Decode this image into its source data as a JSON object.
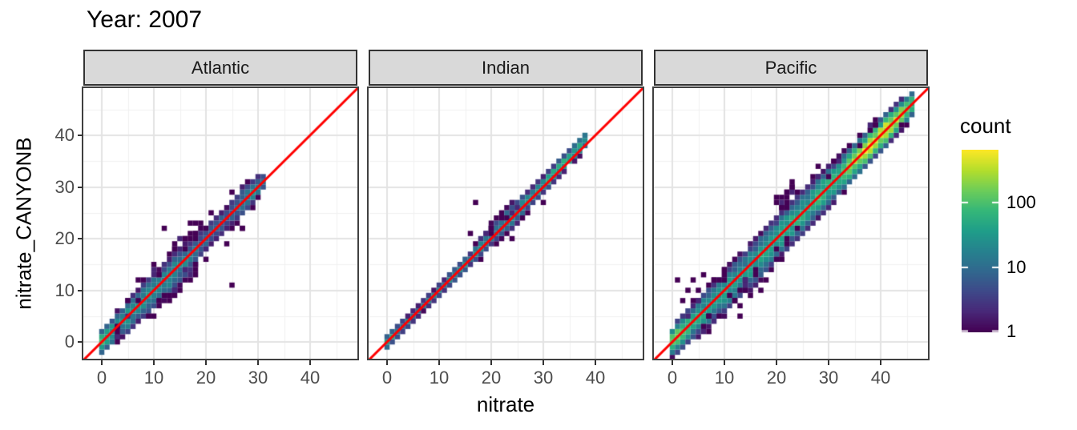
{
  "title": "Year: 2007",
  "axes": {
    "x_label": "nitrate",
    "y_label": "nitrate_CANYONB",
    "x_tick_labels": [
      "0",
      "10",
      "20",
      "30",
      "40"
    ],
    "x_tick_values": [
      0,
      10,
      20,
      30,
      40
    ],
    "y_tick_labels": [
      "0",
      "10",
      "20",
      "30",
      "40"
    ],
    "y_tick_values": [
      0,
      10,
      20,
      30,
      40
    ],
    "minor_tick_values": [
      5,
      15,
      25,
      35,
      45
    ]
  },
  "legend": {
    "title": "count",
    "tick_labels": [
      "100",
      "10",
      "1"
    ],
    "tick_values": [
      100,
      10,
      1
    ],
    "max_count": 650
  },
  "colors": {
    "background": "#ffffff",
    "strip_bg": "#d9d9d9",
    "strip_border": "#333333",
    "panel_border": "#404040",
    "grid_major": "#e3e3e3",
    "grid_minor": "#f1f1f1",
    "tick_label": "#4d4d4d",
    "tick_mark": "#333333",
    "reference_line": "#ff0000",
    "viridis": [
      "#440154",
      "#482878",
      "#3e4989",
      "#31688e",
      "#26828e",
      "#1f9e89",
      "#35b779",
      "#6dcd59",
      "#b4de2c",
      "#fde725"
    ]
  },
  "chart_data": {
    "type": "heatmap",
    "subtype": "bin2d-scatter",
    "title": "Year: 2007",
    "xlabel": "nitrate",
    "ylabel": "nitrate_CANYONB",
    "xlim": [
      -3.5,
      49.2
    ],
    "ylim": [
      -3.3,
      49.2
    ],
    "grid": true,
    "legend_position": "right",
    "fill_scale": {
      "name": "count",
      "transform": "log10",
      "limits": [
        1,
        650
      ],
      "palette": "viridis",
      "legend_ticks": [
        1,
        10,
        100
      ]
    },
    "reference_line": {
      "type": "abline",
      "slope": 1,
      "intercept": 0,
      "color": "#ff0000",
      "width": 3
    },
    "bin_width": 1,
    "facets": [
      {
        "name": "Atlantic",
        "seed": 11,
        "diagonal_extent": [
          0,
          31
        ],
        "count_profile": [
          [
            0,
            95
          ],
          [
            1,
            55
          ],
          [
            3,
            35
          ],
          [
            6,
            28
          ],
          [
            9,
            25
          ],
          [
            12,
            22
          ],
          [
            15,
            16
          ],
          [
            18,
            12
          ],
          [
            21,
            9
          ],
          [
            24,
            7
          ],
          [
            27,
            10
          ],
          [
            29,
            22
          ],
          [
            30,
            28
          ],
          [
            31,
            12
          ]
        ],
        "spread_profile": [
          [
            0,
            0.9
          ],
          [
            5,
            1.3
          ],
          [
            10,
            1.5
          ],
          [
            15,
            1.6
          ],
          [
            20,
            1.3
          ],
          [
            24,
            1.2
          ],
          [
            27,
            1.4
          ],
          [
            29,
            1.0
          ],
          [
            31,
            0.8
          ]
        ],
        "bias_profile": [
          [
            0,
            0
          ],
          [
            10,
            -0.2
          ],
          [
            15,
            -0.4
          ],
          [
            20,
            0
          ],
          [
            31,
            0
          ]
        ],
        "extra_scatter": [
          {
            "x0": 8,
            "x1": 22,
            "dy0": -5,
            "dy1": -2,
            "n": 16
          },
          {
            "x0": 8,
            "x1": 22,
            "dy0": 2,
            "dy1": 5,
            "n": 12
          },
          {
            "x0": 2,
            "x1": 8,
            "dy0": -3,
            "dy1": 3,
            "n": 8
          }
        ],
        "outliers": [
          [
            25,
            11
          ],
          [
            12,
            22
          ],
          [
            17,
            22.5
          ],
          [
            21,
            25
          ],
          [
            24,
            18.5
          ],
          [
            10,
            15
          ],
          [
            14,
            19
          ],
          [
            7,
            11.5
          ],
          [
            18,
            23
          ],
          [
            27,
            22
          ],
          [
            28,
            31
          ]
        ]
      },
      {
        "name": "Indian",
        "seed": 7,
        "diagonal_extent": [
          0,
          38
        ],
        "count_profile": [
          [
            0,
            55
          ],
          [
            2,
            22
          ],
          [
            5,
            14
          ],
          [
            8,
            16
          ],
          [
            11,
            20
          ],
          [
            14,
            22
          ],
          [
            17,
            25
          ],
          [
            19,
            14
          ],
          [
            21,
            12
          ],
          [
            23,
            18
          ],
          [
            25,
            22
          ],
          [
            28,
            30
          ],
          [
            31,
            55
          ],
          [
            34,
            65
          ],
          [
            36,
            55
          ],
          [
            38,
            28
          ]
        ],
        "spread_profile": [
          [
            0,
            0.55
          ],
          [
            10,
            0.5
          ],
          [
            16,
            0.6
          ],
          [
            20,
            1.0
          ],
          [
            24,
            1.1
          ],
          [
            28,
            0.7
          ],
          [
            33,
            0.6
          ],
          [
            38,
            0.7
          ]
        ],
        "bias_profile": [
          [
            0,
            0
          ],
          [
            16,
            0
          ],
          [
            20,
            0.6
          ],
          [
            24,
            0.4
          ],
          [
            28,
            0.3
          ],
          [
            33,
            0.6
          ],
          [
            38,
            0.9
          ]
        ],
        "extra_scatter": [
          {
            "x0": 17,
            "x1": 26,
            "dy0": 0.5,
            "dy1": 2.5,
            "n": 9
          }
        ],
        "outliers": [
          [
            17,
            26.5
          ],
          [
            24,
            20
          ],
          [
            16,
            21
          ],
          [
            30,
            27
          ]
        ]
      },
      {
        "name": "Pacific",
        "seed": 23,
        "diagonal_extent": [
          0,
          46
        ],
        "count_profile": [
          [
            0,
            160
          ],
          [
            2,
            70
          ],
          [
            5,
            45
          ],
          [
            8,
            35
          ],
          [
            11,
            32
          ],
          [
            14,
            35
          ],
          [
            17,
            38
          ],
          [
            20,
            42
          ],
          [
            23,
            45
          ],
          [
            26,
            50
          ],
          [
            29,
            60
          ],
          [
            32,
            80
          ],
          [
            34,
            130
          ],
          [
            36,
            300
          ],
          [
            38,
            480
          ],
          [
            40,
            520
          ],
          [
            42,
            380
          ],
          [
            44,
            230
          ],
          [
            46,
            90
          ]
        ],
        "spread_profile": [
          [
            0,
            1.0
          ],
          [
            5,
            1.4
          ],
          [
            10,
            1.7
          ],
          [
            15,
            1.8
          ],
          [
            20,
            1.7
          ],
          [
            25,
            1.6
          ],
          [
            30,
            1.5
          ],
          [
            34,
            1.2
          ],
          [
            38,
            1.0
          ],
          [
            42,
            1.0
          ],
          [
            46,
            0.9
          ]
        ],
        "bias_profile": [
          [
            0,
            0
          ],
          [
            10,
            -0.4
          ],
          [
            16,
            -0.5
          ],
          [
            22,
            0
          ],
          [
            46,
            0
          ]
        ],
        "extra_scatter": [
          {
            "x0": 6,
            "x1": 24,
            "dy0": -5,
            "dy1": -1.5,
            "n": 20
          },
          {
            "x0": 19,
            "x1": 27,
            "dy0": 4,
            "dy1": 8,
            "n": 13
          },
          {
            "x0": 26,
            "x1": 40,
            "dy0": 2,
            "dy1": 4,
            "n": 9
          },
          {
            "x0": 3,
            "x1": 16,
            "dy0": 2,
            "dy1": 4,
            "n": 8
          }
        ],
        "outliers": [
          [
            1,
            12
          ],
          [
            4,
            12
          ],
          [
            5.5,
            13
          ],
          [
            9.5,
            13.5
          ],
          [
            3,
            9.5
          ],
          [
            13,
            5
          ],
          [
            17,
            9.5
          ],
          [
            2,
            8
          ],
          [
            44,
            42
          ],
          [
            36,
            40
          ],
          [
            20,
            28
          ],
          [
            23,
            30
          ]
        ]
      }
    ]
  }
}
